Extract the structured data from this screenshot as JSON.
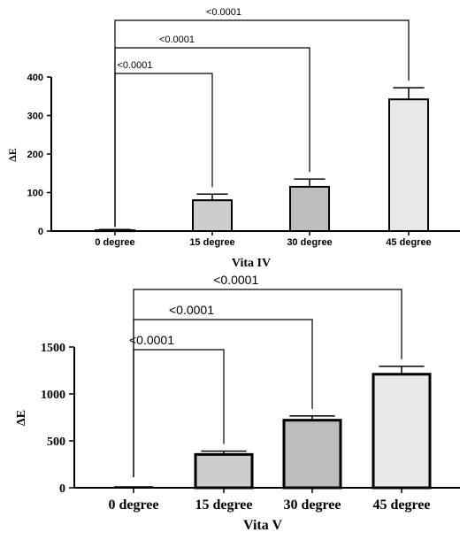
{
  "chart_data": [
    {
      "type": "bar",
      "xlabel": "Vita IV",
      "ylabel": "ΔE",
      "categories": [
        "0 degree",
        "15 degree",
        "30 degree",
        "45 degree"
      ],
      "values": [
        2,
        80,
        115,
        342
      ],
      "errors": [
        2,
        16,
        20,
        30
      ],
      "ylim": [
        0,
        400
      ],
      "yticks": [
        0,
        100,
        200,
        300,
        400
      ],
      "bar_colors": [
        "#d9d9d9",
        "#cdcdcd",
        "#bdbdbd",
        "#e8e8e8"
      ],
      "comparisons": [
        {
          "from": 0,
          "to": 1,
          "label": "<0.0001"
        },
        {
          "from": 0,
          "to": 2,
          "label": "<0.0001"
        },
        {
          "from": 0,
          "to": 3,
          "label": "<0.0001"
        }
      ]
    },
    {
      "type": "bar",
      "xlabel": "Vita V",
      "ylabel": "ΔE",
      "categories": [
        "0 degree",
        "15 degree",
        "30 degree",
        "45 degree"
      ],
      "values": [
        0,
        355,
        720,
        1210
      ],
      "errors": [
        0,
        35,
        45,
        85
      ],
      "ylim": [
        0,
        1500
      ],
      "yticks": [
        0,
        500,
        1000,
        1500
      ],
      "bar_colors": [
        "#d9d9d9",
        "#cdcdcd",
        "#bdbdbd",
        "#e8e8e8"
      ],
      "comparisons": [
        {
          "from": 0,
          "to": 1,
          "label": "<0.0001"
        },
        {
          "from": 0,
          "to": 2,
          "label": "<0.0001"
        },
        {
          "from": 0,
          "to": 3,
          "label": "<0.0001"
        }
      ]
    }
  ]
}
